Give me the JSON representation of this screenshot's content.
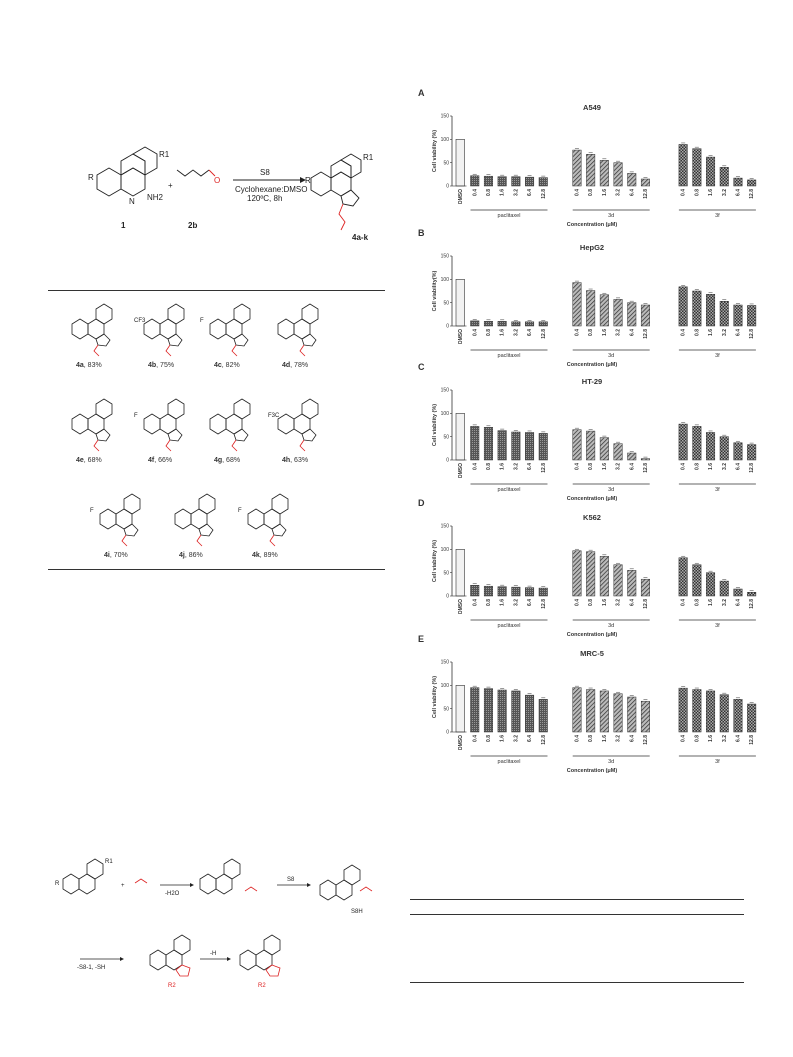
{
  "scheme": {
    "reagent_top": "S8",
    "conditions_line1": "Cyclohexane:DMSO",
    "conditions_line2": "120ºC, 8h",
    "compound1_label": "1",
    "compound2_label": "2b",
    "product_label": "4a-k",
    "plus": "+",
    "substituent_R": "R",
    "substituent_R1": "R1",
    "nh2": "NH2",
    "n": "N",
    "o": "O"
  },
  "compounds": [
    {
      "id": "4a",
      "yield": "83%",
      "sub": ""
    },
    {
      "id": "4b",
      "yield": "75%",
      "sub": "CF3"
    },
    {
      "id": "4c",
      "yield": "82%",
      "sub": "F"
    },
    {
      "id": "4d",
      "yield": "78%",
      "sub": ""
    },
    {
      "id": "4e",
      "yield": "68%",
      "sub": ""
    },
    {
      "id": "4f",
      "yield": "66%",
      "sub": "F"
    },
    {
      "id": "4g",
      "yield": "68%",
      "sub": ""
    },
    {
      "id": "4h",
      "yield": "63%",
      "sub": "F3C"
    },
    {
      "id": "4i",
      "yield": "70%",
      "sub": "F"
    },
    {
      "id": "4j",
      "yield": "86%",
      "sub": ""
    },
    {
      "id": "4k",
      "yield": "89%",
      "sub": "F"
    }
  ],
  "mechanism": {
    "step1_label": "-H2O",
    "step2_label": "S8",
    "step3_label": "-S8-1, -SH",
    "step4_label": "-H",
    "sh_label": "S8H",
    "r2": "R2",
    "r": "R",
    "r1": "R1"
  },
  "chart_data": [
    {
      "panel": "A",
      "type": "bar",
      "title": "A549",
      "ylabel": "Cell viability (%)",
      "xlabel": "Concentration (μM)",
      "ylim": [
        0,
        150
      ],
      "yticks": [
        "0",
        "50",
        "100",
        "150"
      ],
      "control": {
        "label": "DMSO",
        "value": 100
      },
      "groups": [
        {
          "name": "paclitaxel",
          "categories": [
            "0.4",
            "0.8",
            "1.6",
            "3.2",
            "6.4",
            "12.8"
          ],
          "values": [
            22,
            21,
            20,
            20,
            19,
            18
          ]
        },
        {
          "name": "3d",
          "categories": [
            "0.4",
            "0.8",
            "1.6",
            "3.2",
            "6.4",
            "12.8"
          ],
          "values": [
            77,
            68,
            55,
            50,
            27,
            15
          ]
        },
        {
          "name": "3f",
          "categories": [
            "0.4",
            "0.8",
            "1.6",
            "3.2",
            "6.4",
            "12.8"
          ],
          "values": [
            89,
            80,
            62,
            40,
            17,
            13
          ]
        }
      ]
    },
    {
      "panel": "B",
      "type": "bar",
      "title": "HepG2",
      "ylabel": "Cell viability(%)",
      "xlabel": "Concentration (μM)",
      "ylim": [
        0,
        150
      ],
      "yticks": [
        "0",
        "50",
        "100",
        "150"
      ],
      "control": {
        "label": "DMSO",
        "value": 100
      },
      "groups": [
        {
          "name": "paclitaxel",
          "categories": [
            "0.4",
            "0.8",
            "1.6",
            "3.2",
            "6.4",
            "12.8"
          ],
          "values": [
            11,
            10,
            10,
            9,
            9,
            9
          ]
        },
        {
          "name": "3d",
          "categories": [
            "0.4",
            "0.8",
            "1.6",
            "3.2",
            "6.4",
            "12.8"
          ],
          "values": [
            93,
            76,
            67,
            57,
            50,
            45
          ]
        },
        {
          "name": "3f",
          "categories": [
            "0.4",
            "0.8",
            "1.6",
            "3.2",
            "6.4",
            "12.8"
          ],
          "values": [
            84,
            75,
            68,
            53,
            45,
            44
          ]
        }
      ]
    },
    {
      "panel": "C",
      "type": "bar",
      "title": "HT-29",
      "ylabel": "Cell viability (%)",
      "xlabel": "Concentration (μM)",
      "ylim": [
        0,
        150
      ],
      "yticks": [
        "0",
        "50",
        "100",
        "150"
      ],
      "control": {
        "label": "DMSO",
        "value": 100
      },
      "groups": [
        {
          "name": "paclitaxel",
          "categories": [
            "0.4",
            "0.8",
            "1.6",
            "3.2",
            "6.4",
            "12.8"
          ],
          "values": [
            72,
            70,
            63,
            60,
            59,
            57
          ]
        },
        {
          "name": "3d",
          "categories": [
            "0.4",
            "0.8",
            "1.6",
            "3.2",
            "6.4",
            "12.8"
          ],
          "values": [
            65,
            62,
            48,
            35,
            15,
            3
          ]
        },
        {
          "name": "3f",
          "categories": [
            "0.4",
            "0.8",
            "1.6",
            "3.2",
            "6.4",
            "12.8"
          ],
          "values": [
            77,
            72,
            59,
            50,
            37,
            33
          ]
        }
      ]
    },
    {
      "panel": "D",
      "type": "bar",
      "title": "K562",
      "ylabel": "Cell viability (%)",
      "xlabel": "Concentration (μM)",
      "ylim": [
        0,
        150
      ],
      "yticks": [
        "0",
        "50",
        "100",
        "150"
      ],
      "control": {
        "label": "DMSO",
        "value": 100
      },
      "groups": [
        {
          "name": "paclitaxel",
          "categories": [
            "0.4",
            "0.8",
            "1.6",
            "3.2",
            "6.4",
            "12.8"
          ],
          "values": [
            23,
            21,
            20,
            19,
            18,
            17
          ]
        },
        {
          "name": "3d",
          "categories": [
            "0.4",
            "0.8",
            "1.6",
            "3.2",
            "6.4",
            "12.8"
          ],
          "values": [
            97,
            95,
            85,
            67,
            55,
            36
          ]
        },
        {
          "name": "3f",
          "categories": [
            "0.4",
            "0.8",
            "1.6",
            "3.2",
            "6.4",
            "12.8"
          ],
          "values": [
            82,
            67,
            50,
            32,
            15,
            8
          ]
        }
      ]
    },
    {
      "panel": "E",
      "type": "bar",
      "title": "MRC-5",
      "ylabel": "Cell viability (%)",
      "xlabel": "Concentration (μM)",
      "ylim": [
        0,
        150
      ],
      "yticks": [
        "0",
        "50",
        "100",
        "150"
      ],
      "control": {
        "label": "DMSO",
        "value": 100
      },
      "groups": [
        {
          "name": "paclitaxel",
          "categories": [
            "0.4",
            "0.8",
            "1.6",
            "3.2",
            "6.4",
            "12.8"
          ],
          "values": [
            95,
            93,
            90,
            88,
            79,
            70
          ]
        },
        {
          "name": "3d",
          "categories": [
            "0.4",
            "0.8",
            "1.6",
            "3.2",
            "6.4",
            "12.8"
          ],
          "values": [
            95,
            91,
            88,
            82,
            75,
            66
          ]
        },
        {
          "name": "3f",
          "categories": [
            "0.4",
            "0.8",
            "1.6",
            "3.2",
            "6.4",
            "12.8"
          ],
          "values": [
            94,
            91,
            88,
            80,
            70,
            60
          ]
        }
      ]
    }
  ]
}
